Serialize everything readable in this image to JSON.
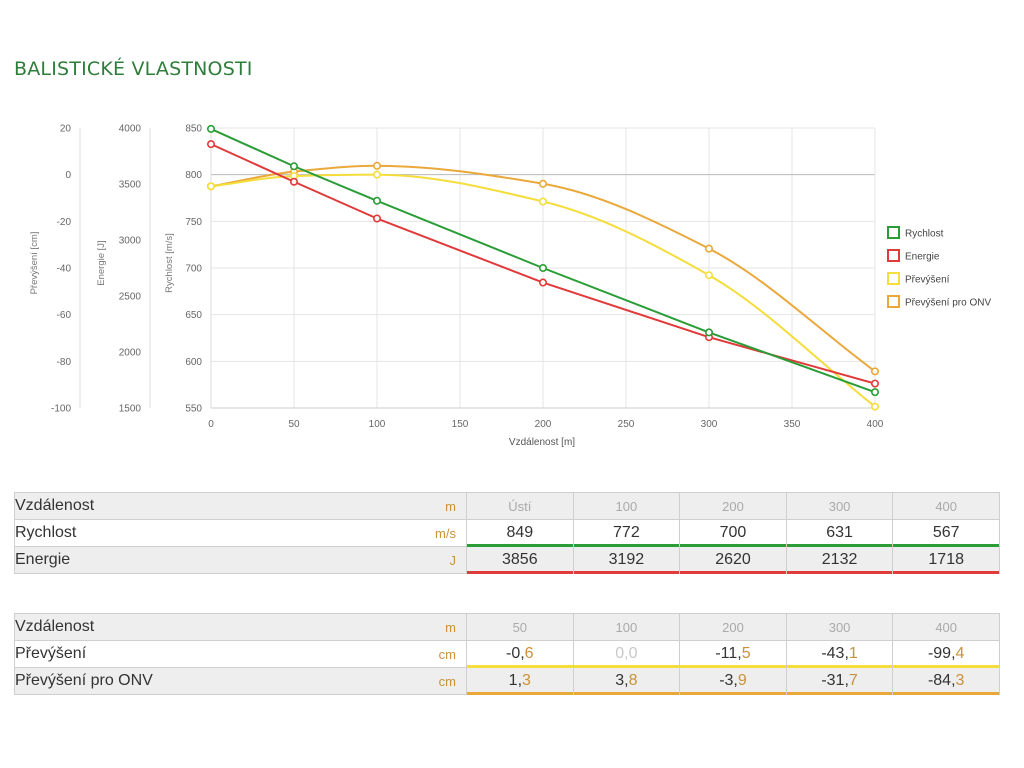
{
  "page_title": "BALISTICKÉ VLASTNOSTI",
  "colors": {
    "title": "#2f7d3b",
    "Rychlost": "#2a9d38",
    "Energie": "#e03a3a",
    "Prevyseni": "#f5dd3c",
    "PrevyseniONV": "#eba83a",
    "unit": "#c9913a"
  },
  "chart_data": {
    "type": "line",
    "xlabel": "Vzdálenost [m]",
    "x_ticks": [
      0,
      50,
      100,
      150,
      200,
      250,
      300,
      350,
      400
    ],
    "xlim": [
      0,
      400
    ],
    "grid": true,
    "legend_position": "right",
    "axes": [
      {
        "id": "prevyseni",
        "label": "Převýšení [cm]",
        "ticks": [
          20,
          0,
          -20,
          -40,
          -60,
          -80,
          -100
        ],
        "ylim": [
          -100,
          20
        ]
      },
      {
        "id": "energie",
        "label": "Energie [J]",
        "ticks": [
          4000,
          3500,
          3000,
          2500,
          2000,
          1500
        ],
        "ylim": [
          1500,
          4000
        ]
      },
      {
        "id": "rychlost",
        "label": "Rychlost [m/s]",
        "ticks": [
          850,
          800,
          750,
          700,
          650,
          600,
          550
        ],
        "ylim": [
          550,
          850
        ]
      }
    ],
    "series": [
      {
        "name": "Rychlost",
        "axis": "rychlost",
        "color": "#2a9d38",
        "smooth": false,
        "x": [
          0,
          50,
          100,
          200,
          300,
          400
        ],
        "y": [
          849,
          809,
          772,
          700,
          631,
          567
        ]
      },
      {
        "name": "Energie",
        "axis": "energie",
        "color": "#e03a3a",
        "smooth": false,
        "x": [
          0,
          50,
          100,
          200,
          300,
          400
        ],
        "y": [
          3856,
          3520,
          3192,
          2620,
          2132,
          1718
        ]
      },
      {
        "name": "Převýšení",
        "axis": "prevyseni",
        "color": "#f5dd3c",
        "smooth": true,
        "x": [
          0,
          50,
          100,
          200,
          300,
          400
        ],
        "y": [
          -5,
          -0.6,
          0.0,
          -11.5,
          -43.1,
          -99.4
        ]
      },
      {
        "name": "Převýšení pro ONV",
        "axis": "prevyseni",
        "color": "#eba83a",
        "smooth": true,
        "x": [
          0,
          50,
          100,
          200,
          300,
          400
        ],
        "y": [
          -5,
          1.3,
          3.8,
          -3.9,
          -31.7,
          -84.3
        ]
      }
    ]
  },
  "table1": {
    "rows": [
      {
        "label": "Vzdálenost",
        "unit": "m",
        "head": true,
        "values": [
          {
            "text": "Ústí"
          },
          {
            "text": "100"
          },
          {
            "text": "200"
          },
          {
            "text": "300"
          },
          {
            "text": "400"
          }
        ]
      },
      {
        "label": "Rychlost",
        "unit": "m/s",
        "bar": "#2a9d38",
        "values": [
          {
            "text": "849"
          },
          {
            "text": "772"
          },
          {
            "text": "700"
          },
          {
            "text": "631"
          },
          {
            "text": "567"
          }
        ]
      },
      {
        "label": "Energie",
        "unit": "J",
        "bar": "#e03a3a",
        "band": true,
        "values": [
          {
            "text": "3856"
          },
          {
            "text": "3192"
          },
          {
            "text": "2620"
          },
          {
            "text": "2132"
          },
          {
            "text": "1718"
          }
        ]
      }
    ]
  },
  "table2": {
    "rows": [
      {
        "label": "Vzdálenost",
        "unit": "m",
        "head": true,
        "values": [
          {
            "text": "50"
          },
          {
            "text": "100"
          },
          {
            "text": "200"
          },
          {
            "text": "300"
          },
          {
            "text": "400"
          }
        ]
      },
      {
        "label": "Převýšení",
        "unit": "cm",
        "bar": "#f5dd3c",
        "values": [
          {
            "int": "-0,",
            "dec": "6"
          },
          {
            "int": "0,0",
            "dec": "",
            "dim": true
          },
          {
            "int": "-11,",
            "dec": "5"
          },
          {
            "int": "-43,",
            "dec": "1"
          },
          {
            "int": "-99,",
            "dec": "4"
          }
        ]
      },
      {
        "label": "Převýšení pro ONV",
        "unit": "cm",
        "bar": "#eba83a",
        "band": true,
        "values": [
          {
            "int": "1,",
            "dec": "3"
          },
          {
            "int": "3,",
            "dec": "8"
          },
          {
            "int": "-3,",
            "dec": "9"
          },
          {
            "int": "-31,",
            "dec": "7"
          },
          {
            "int": "-84,",
            "dec": "3"
          }
        ]
      }
    ]
  }
}
